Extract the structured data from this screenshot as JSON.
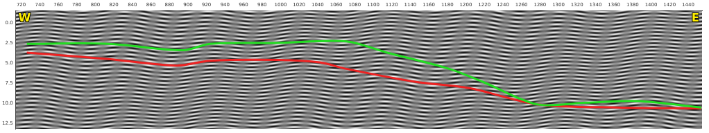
{
  "chart_data": {
    "type": "line",
    "annotations": [
      {
        "text": "W"
      },
      {
        "text": "E"
      }
    ],
    "xlim": [
      714,
      1455
    ],
    "xticks": [
      720,
      740,
      760,
      780,
      800,
      820,
      840,
      860,
      880,
      900,
      920,
      940,
      960,
      980,
      1000,
      1020,
      1040,
      1060,
      1080,
      1100,
      1120,
      1140,
      1160,
      1180,
      1200,
      1220,
      1240,
      1260,
      1280,
      1300,
      1320,
      1340,
      1360,
      1380,
      1400,
      1420,
      1440
    ],
    "ylim": [
      -1.5,
      13.2
    ],
    "yticks": [
      {
        "value": 0,
        "label": "0.0"
      },
      2.5,
      {
        "value": 5,
        "label": "5.0"
      },
      7.5,
      {
        "value": 10,
        "label": "10.0"
      },
      12.5
    ],
    "grid": false,
    "series": [
      {
        "color": "#22dd22",
        "line_style": "solid",
        "x": [
          726,
          814,
          895,
          924,
          998,
          1071,
          1115,
          1182,
          1218,
          1277,
          1329,
          1387,
          1454
        ],
        "values": [
          2.6,
          2.6,
          3.4,
          2.6,
          2.5,
          2.3,
          3.7,
          5.7,
          7.3,
          10.1,
          9.9,
          9.7,
          10.5
        ]
      },
      {
        "color": "#ee2222",
        "line_style": "solid",
        "x": [
          726,
          814,
          888,
          924,
          998,
          1042,
          1071,
          1145,
          1204,
          1277,
          1365,
          1454
        ],
        "values": [
          3.7,
          4.5,
          5.3,
          4.7,
          4.6,
          4.9,
          5.7,
          7.3,
          8.1,
          10.1,
          10.5,
          10.6
        ]
      }
    ]
  }
}
